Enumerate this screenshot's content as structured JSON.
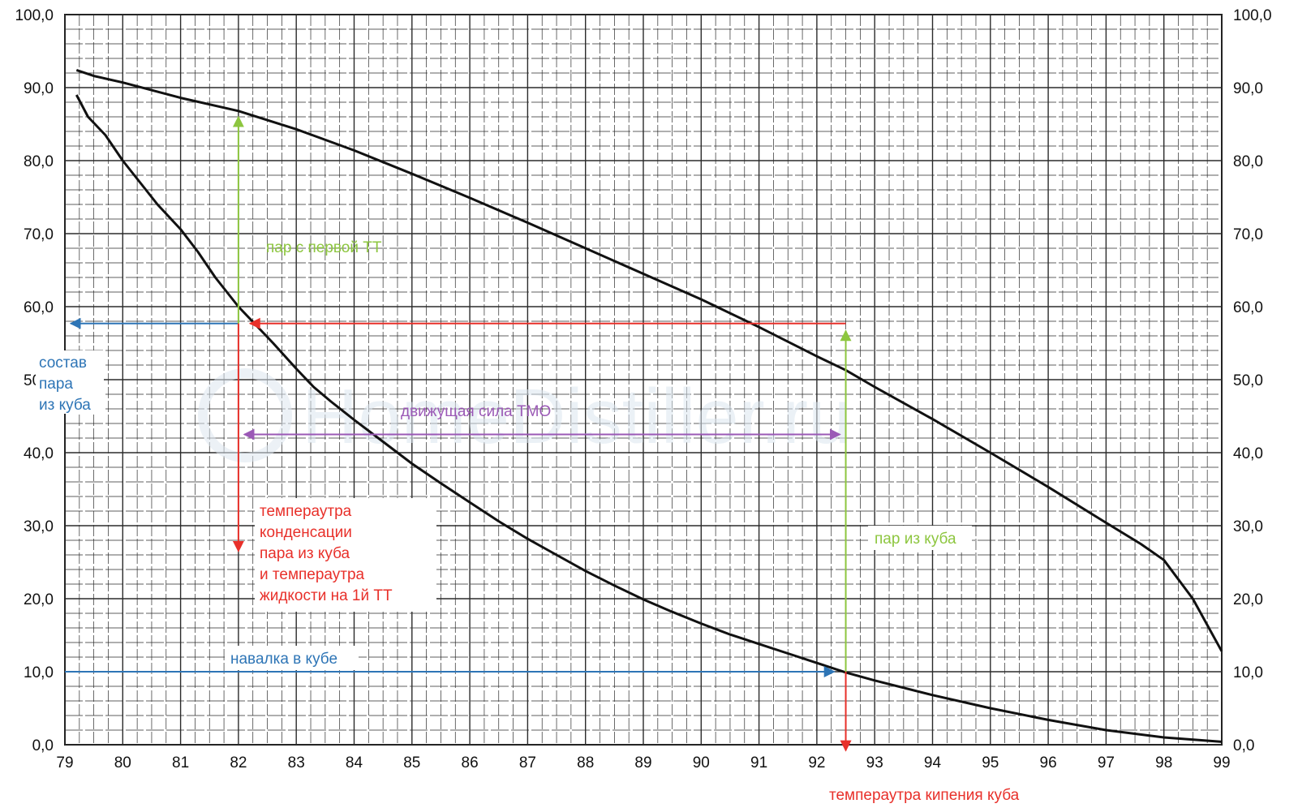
{
  "chart_data": {
    "type": "line",
    "xlim": [
      79,
      99
    ],
    "ylim": [
      0,
      100
    ],
    "x_ticks": [
      "79",
      "80",
      "81",
      "82",
      "83",
      "84",
      "85",
      "86",
      "87",
      "88",
      "89",
      "90",
      "91",
      "92",
      "93",
      "94",
      "95",
      "96",
      "97",
      "98",
      "99"
    ],
    "y_ticks_left": [
      "0,0",
      "10,0",
      "20,0",
      "30,0",
      "40,0",
      "50,0",
      "60,0",
      "70,0",
      "80,0",
      "90,0",
      "100,0"
    ],
    "y_ticks_right": [
      "0,0",
      "10,0",
      "20,0",
      "30,0",
      "40,0",
      "50,0",
      "60,0",
      "70,0",
      "80,0",
      "90,0",
      "100,0"
    ],
    "grid": true,
    "series": [
      {
        "id": "vapor",
        "color": "#111111",
        "points": [
          [
            79.2,
            92.4
          ],
          [
            79.5,
            91.6
          ],
          [
            80,
            90.7
          ],
          [
            81,
            88.6
          ],
          [
            82,
            86.8
          ],
          [
            83,
            84.3
          ],
          [
            84,
            81.4
          ],
          [
            85,
            78.2
          ],
          [
            86,
            74.9
          ],
          [
            87,
            71.5
          ],
          [
            88,
            68.0
          ],
          [
            89,
            64.5
          ],
          [
            90,
            61.0
          ],
          [
            91,
            57.2
          ],
          [
            92,
            53.2
          ],
          [
            92.5,
            51.3
          ],
          [
            93,
            49.0
          ],
          [
            94,
            44.6
          ],
          [
            95,
            40.0
          ],
          [
            96,
            35.3
          ],
          [
            97,
            30.4
          ],
          [
            97.6,
            27.5
          ],
          [
            98,
            25.3
          ],
          [
            98.5,
            20.0
          ],
          [
            99,
            12.8
          ]
        ]
      },
      {
        "id": "liquid",
        "color": "#111111",
        "points": [
          [
            79.2,
            89.0
          ],
          [
            79.4,
            86.0
          ],
          [
            79.7,
            83.5
          ],
          [
            80,
            80.0
          ],
          [
            80.3,
            77.0
          ],
          [
            80.6,
            74.0
          ],
          [
            81,
            70.6
          ],
          [
            81.3,
            67.5
          ],
          [
            81.6,
            64.0
          ],
          [
            82,
            60.0
          ],
          [
            82.3,
            57.5
          ],
          [
            82.6,
            55.0
          ],
          [
            83,
            51.5
          ],
          [
            83.3,
            49.0
          ],
          [
            83.6,
            47.0
          ],
          [
            84,
            44.5
          ],
          [
            84.5,
            41.5
          ],
          [
            85,
            38.5
          ],
          [
            85.5,
            35.8
          ],
          [
            86,
            33.2
          ],
          [
            86.5,
            30.6
          ],
          [
            87,
            28.2
          ],
          [
            87.5,
            26.0
          ],
          [
            88,
            23.8
          ],
          [
            88.5,
            21.8
          ],
          [
            89,
            19.9
          ],
          [
            89.5,
            18.2
          ],
          [
            90,
            16.6
          ],
          [
            90.5,
            15.1
          ],
          [
            91,
            13.8
          ],
          [
            91.5,
            12.5
          ],
          [
            92,
            11.2
          ],
          [
            92.5,
            9.9
          ],
          [
            93,
            8.8
          ],
          [
            94,
            6.8
          ],
          [
            95,
            5.0
          ],
          [
            96,
            3.4
          ],
          [
            97,
            2.0
          ],
          [
            98,
            1.0
          ],
          [
            99,
            0.4
          ]
        ]
      }
    ],
    "annotations": [
      {
        "id": "vapor-first-plate",
        "text": "пар с первой ТТ",
        "color": "#8dc63f"
      },
      {
        "id": "vapor-composition",
        "lines": [
          "состав",
          "пара",
          "из куба"
        ],
        "color": "#2e75b6"
      },
      {
        "id": "driving-force",
        "text": "движущая сила ТМО",
        "color": "#9b59b6"
      },
      {
        "id": "condensation-temp",
        "lines": [
          "темпераутра",
          "конденсации",
          "пара из куба",
          "и темпераутра",
          "жидкости  на 1й ТТ"
        ],
        "color": "#e8302a"
      },
      {
        "id": "vapor-from-still",
        "text": "пар из куба",
        "color": "#8dc63f"
      },
      {
        "id": "charge-in-still",
        "text": "навалка в кубе",
        "color": "#2e75b6"
      },
      {
        "id": "still-boiling-temp",
        "text": "темпераутра кипения куба",
        "color": "#e8302a"
      }
    ],
    "watermark": "HomeDistiller.ru"
  }
}
